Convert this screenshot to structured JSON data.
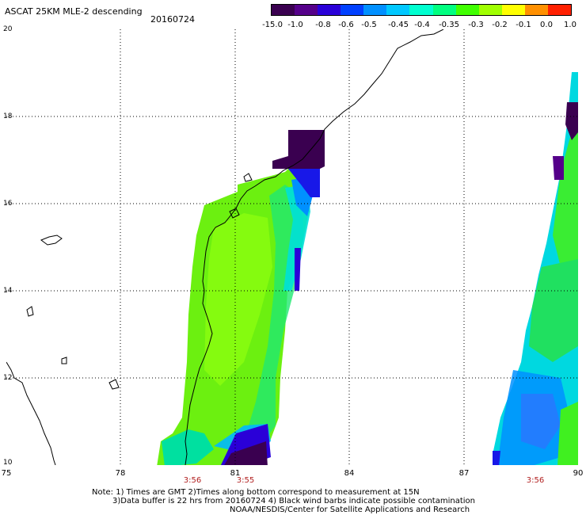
{
  "header": {
    "title": "ASCAT 25KM MLE-2 descending",
    "date": "20160724"
  },
  "colorbar": {
    "labels": [
      "-15.0",
      "-1.0",
      "-0.8",
      "-0.6",
      "-0.5",
      "-0.45",
      "-0.4",
      "-0.35",
      "-0.3",
      "-0.2",
      "-0.1",
      "0.0",
      "1.0"
    ],
    "colors": [
      "#3a0050",
      "#55008a",
      "#2a00d8",
      "#0040ff",
      "#0090ff",
      "#00c8ff",
      "#00ffd0",
      "#00ff80",
      "#40ff00",
      "#a0ff00",
      "#ffff00",
      "#ff9000",
      "#ff2000"
    ]
  },
  "axes": {
    "y_labels": [
      "20",
      "18",
      "16",
      "14",
      "12",
      "10"
    ],
    "x_labels": [
      "75",
      "78",
      "81",
      "84",
      "87",
      "90"
    ]
  },
  "times": [
    "3:56",
    "3:55",
    "3:56"
  ],
  "notes": {
    "line1": "Note: 1) Times are GMT 2)Times along bottom correspond to measurement at 15N",
    "line2": "3)Data buffer is 22 hrs from 20160724 4) Black wind barbs indicate possible contamination",
    "line3": "NOAA/NESDIS/Center for Satellite Applications and Research"
  }
}
